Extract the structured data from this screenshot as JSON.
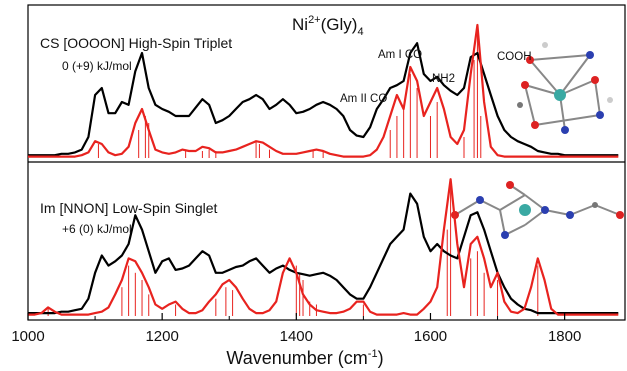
{
  "chart_data": [
    {
      "type": "line",
      "title": [
        "Ni",
        "2+",
        "(Gly)",
        "4"
      ],
      "annotations": [
        "CS [OOOON] High-Spin Triplet",
        "0 (+9) kJ/mol",
        "Am I CO",
        "Am II CO",
        "NH2",
        "COOH"
      ],
      "xlim": [
        1000,
        1890
      ],
      "ylim": [
        0,
        1
      ],
      "x": [
        1000,
        1010,
        1020,
        1030,
        1040,
        1050,
        1060,
        1070,
        1080,
        1090,
        1100,
        1110,
        1120,
        1130,
        1140,
        1150,
        1160,
        1170,
        1180,
        1190,
        1200,
        1210,
        1220,
        1230,
        1240,
        1250,
        1260,
        1270,
        1280,
        1290,
        1300,
        1310,
        1320,
        1330,
        1340,
        1350,
        1360,
        1370,
        1380,
        1390,
        1400,
        1410,
        1420,
        1430,
        1440,
        1450,
        1460,
        1470,
        1480,
        1490,
        1500,
        1510,
        1520,
        1530,
        1540,
        1550,
        1560,
        1570,
        1580,
        1590,
        1600,
        1610,
        1620,
        1630,
        1640,
        1650,
        1660,
        1670,
        1680,
        1690,
        1700,
        1710,
        1720,
        1730,
        1740,
        1750,
        1760,
        1770,
        1780,
        1790,
        1800,
        1810,
        1820,
        1830,
        1840,
        1850,
        1860,
        1870,
        1880
      ],
      "series": [
        {
          "color": "#000000",
          "values": [
            0.02,
            0.02,
            0.02,
            0.02,
            0.02,
            0.03,
            0.03,
            0.04,
            0.06,
            0.15,
            0.45,
            0.5,
            0.32,
            0.32,
            0.4,
            0.38,
            0.62,
            0.75,
            0.5,
            0.38,
            0.35,
            0.33,
            0.3,
            0.3,
            0.3,
            0.36,
            0.42,
            0.38,
            0.25,
            0.27,
            0.3,
            0.35,
            0.4,
            0.42,
            0.45,
            0.42,
            0.35,
            0.38,
            0.42,
            0.38,
            0.32,
            0.33,
            0.35,
            0.38,
            0.4,
            0.38,
            0.35,
            0.3,
            0.2,
            0.16,
            0.15,
            0.22,
            0.35,
            0.42,
            0.5,
            0.52,
            0.55,
            0.75,
            0.82,
            0.6,
            0.55,
            0.58,
            0.52,
            0.48,
            0.45,
            0.5,
            0.72,
            0.75,
            0.6,
            0.45,
            0.3,
            0.2,
            0.15,
            0.12,
            0.1,
            0.08,
            0.05,
            0.04,
            0.03,
            0.03,
            0.02,
            0.02,
            0.02,
            0.02,
            0.02,
            0.02,
            0.02,
            0.02,
            0.02
          ]
        },
        {
          "color": "#e8231f",
          "values": [
            0.01,
            0.01,
            0.01,
            0.01,
            0.01,
            0.01,
            0.01,
            0.01,
            0.02,
            0.04,
            0.12,
            0.1,
            0.04,
            0.02,
            0.03,
            0.08,
            0.25,
            0.35,
            0.2,
            0.06,
            0.04,
            0.03,
            0.04,
            0.06,
            0.05,
            0.05,
            0.08,
            0.07,
            0.04,
            0.04,
            0.05,
            0.06,
            0.08,
            0.1,
            0.12,
            0.11,
            0.08,
            0.05,
            0.03,
            0.03,
            0.03,
            0.04,
            0.05,
            0.06,
            0.05,
            0.03,
            0.02,
            0.01,
            0.01,
            0.01,
            0.01,
            0.02,
            0.06,
            0.15,
            0.3,
            0.45,
            0.35,
            0.65,
            0.55,
            0.3,
            0.4,
            0.5,
            0.35,
            0.15,
            0.1,
            0.2,
            0.6,
            0.95,
            0.4,
            0.08,
            0.02,
            0.01,
            0.01,
            0.01,
            0.01,
            0.01,
            0.01,
            0.01,
            0.01,
            0.01,
            0.01,
            0.01,
            0.01,
            0.01,
            0.01,
            0.01,
            0.01,
            0.01,
            0.01
          ]
        }
      ],
      "sticks": {
        "color": "#e8231f",
        "x": [
          1105,
          1165,
          1175,
          1180,
          1235,
          1260,
          1270,
          1280,
          1340,
          1345,
          1360,
          1425,
          1440,
          1540,
          1550,
          1560,
          1570,
          1580,
          1600,
          1610,
          1650,
          1665,
          1670,
          1675
        ],
        "values": [
          0.1,
          0.2,
          0.3,
          0.25,
          0.05,
          0.05,
          0.06,
          0.05,
          0.12,
          0.1,
          0.06,
          0.06,
          0.05,
          0.2,
          0.3,
          0.35,
          0.6,
          0.5,
          0.3,
          0.4,
          0.15,
          0.7,
          0.95,
          0.3
        ]
      }
    },
    {
      "type": "line",
      "annotations": [
        "Im [NNON] Low-Spin Singlet",
        "+6 (0) kJ/mol"
      ],
      "xlim": [
        1000,
        1890
      ],
      "ylim": [
        0,
        1
      ],
      "xticks": [
        1000,
        1200,
        1400,
        1600,
        1800
      ],
      "minor_xticks": [
        1100,
        1300,
        1500,
        1700
      ],
      "xlabel": [
        "Wavenumber  (cm",
        "-1",
        ")"
      ],
      "x": [
        1000,
        1010,
        1020,
        1030,
        1040,
        1050,
        1060,
        1070,
        1080,
        1090,
        1100,
        1110,
        1120,
        1130,
        1140,
        1150,
        1160,
        1170,
        1180,
        1190,
        1200,
        1210,
        1220,
        1230,
        1240,
        1250,
        1260,
        1270,
        1280,
        1290,
        1300,
        1310,
        1320,
        1330,
        1340,
        1350,
        1360,
        1370,
        1380,
        1390,
        1400,
        1410,
        1420,
        1430,
        1440,
        1450,
        1460,
        1470,
        1480,
        1490,
        1500,
        1510,
        1520,
        1530,
        1540,
        1550,
        1560,
        1570,
        1580,
        1590,
        1600,
        1610,
        1620,
        1630,
        1640,
        1650,
        1660,
        1670,
        1680,
        1690,
        1700,
        1710,
        1720,
        1730,
        1740,
        1750,
        1760,
        1770,
        1780,
        1790,
        1800,
        1810,
        1820,
        1830,
        1840,
        1850,
        1860,
        1870,
        1880
      ],
      "series": [
        {
          "color": "#000000",
          "values": [
            0.02,
            0.02,
            0.02,
            0.02,
            0.02,
            0.03,
            0.03,
            0.04,
            0.05,
            0.12,
            0.3,
            0.42,
            0.35,
            0.38,
            0.42,
            0.5,
            0.7,
            0.6,
            0.45,
            0.3,
            0.38,
            0.4,
            0.32,
            0.33,
            0.35,
            0.4,
            0.45,
            0.42,
            0.3,
            0.3,
            0.32,
            0.34,
            0.35,
            0.38,
            0.4,
            0.35,
            0.3,
            0.33,
            0.35,
            0.32,
            0.3,
            0.29,
            0.28,
            0.29,
            0.3,
            0.28,
            0.25,
            0.2,
            0.15,
            0.12,
            0.12,
            0.2,
            0.3,
            0.4,
            0.5,
            0.55,
            0.6,
            0.85,
            0.78,
            0.55,
            0.45,
            0.5,
            0.45,
            0.42,
            0.4,
            0.55,
            0.7,
            0.72,
            0.6,
            0.45,
            0.3,
            0.2,
            0.12,
            0.08,
            0.05,
            0.04,
            0.02,
            0.02,
            0.02,
            0.02,
            0.02,
            0.02,
            0.02,
            0.02,
            0.02,
            0.02,
            0.02,
            0.02,
            0.02
          ]
        },
        {
          "color": "#e8231f",
          "values": [
            0.01,
            0.01,
            0.02,
            0.06,
            0.03,
            0.01,
            0.01,
            0.01,
            0.01,
            0.01,
            0.02,
            0.03,
            0.06,
            0.15,
            0.25,
            0.4,
            0.38,
            0.3,
            0.2,
            0.08,
            0.05,
            0.08,
            0.1,
            0.05,
            0.02,
            0.02,
            0.04,
            0.1,
            0.15,
            0.22,
            0.25,
            0.2,
            0.12,
            0.05,
            0.02,
            0.02,
            0.04,
            0.1,
            0.3,
            0.4,
            0.3,
            0.15,
            0.08,
            0.04,
            0.03,
            0.02,
            0.02,
            0.03,
            0.05,
            0.1,
            0.1,
            0.03,
            0.01,
            0.01,
            0.01,
            0.01,
            0.02,
            0.01,
            0.01,
            0.05,
            0.1,
            0.2,
            0.6,
            0.95,
            0.5,
            0.2,
            0.5,
            0.55,
            0.4,
            0.2,
            0.3,
            0.1,
            0.03,
            0.02,
            0.05,
            0.2,
            0.4,
            0.25,
            0.05,
            0.01,
            0.01,
            0.01,
            0.01,
            0.01,
            0.01,
            0.01,
            0.01,
            0.01,
            0.01
          ]
        }
      ],
      "sticks": {
        "color": "#e8231f",
        "x": [
          1030,
          1140,
          1150,
          1160,
          1170,
          1180,
          1220,
          1280,
          1295,
          1305,
          1400,
          1405,
          1410,
          1420,
          1430,
          1500,
          1625,
          1630,
          1660,
          1670,
          1680,
          1700,
          1760
        ],
        "values": [
          0.05,
          0.2,
          0.35,
          0.3,
          0.25,
          0.15,
          0.08,
          0.12,
          0.2,
          0.18,
          0.35,
          0.3,
          0.25,
          0.1,
          0.08,
          0.08,
          0.6,
          0.95,
          0.4,
          0.45,
          0.3,
          0.25,
          0.35
        ]
      }
    }
  ]
}
